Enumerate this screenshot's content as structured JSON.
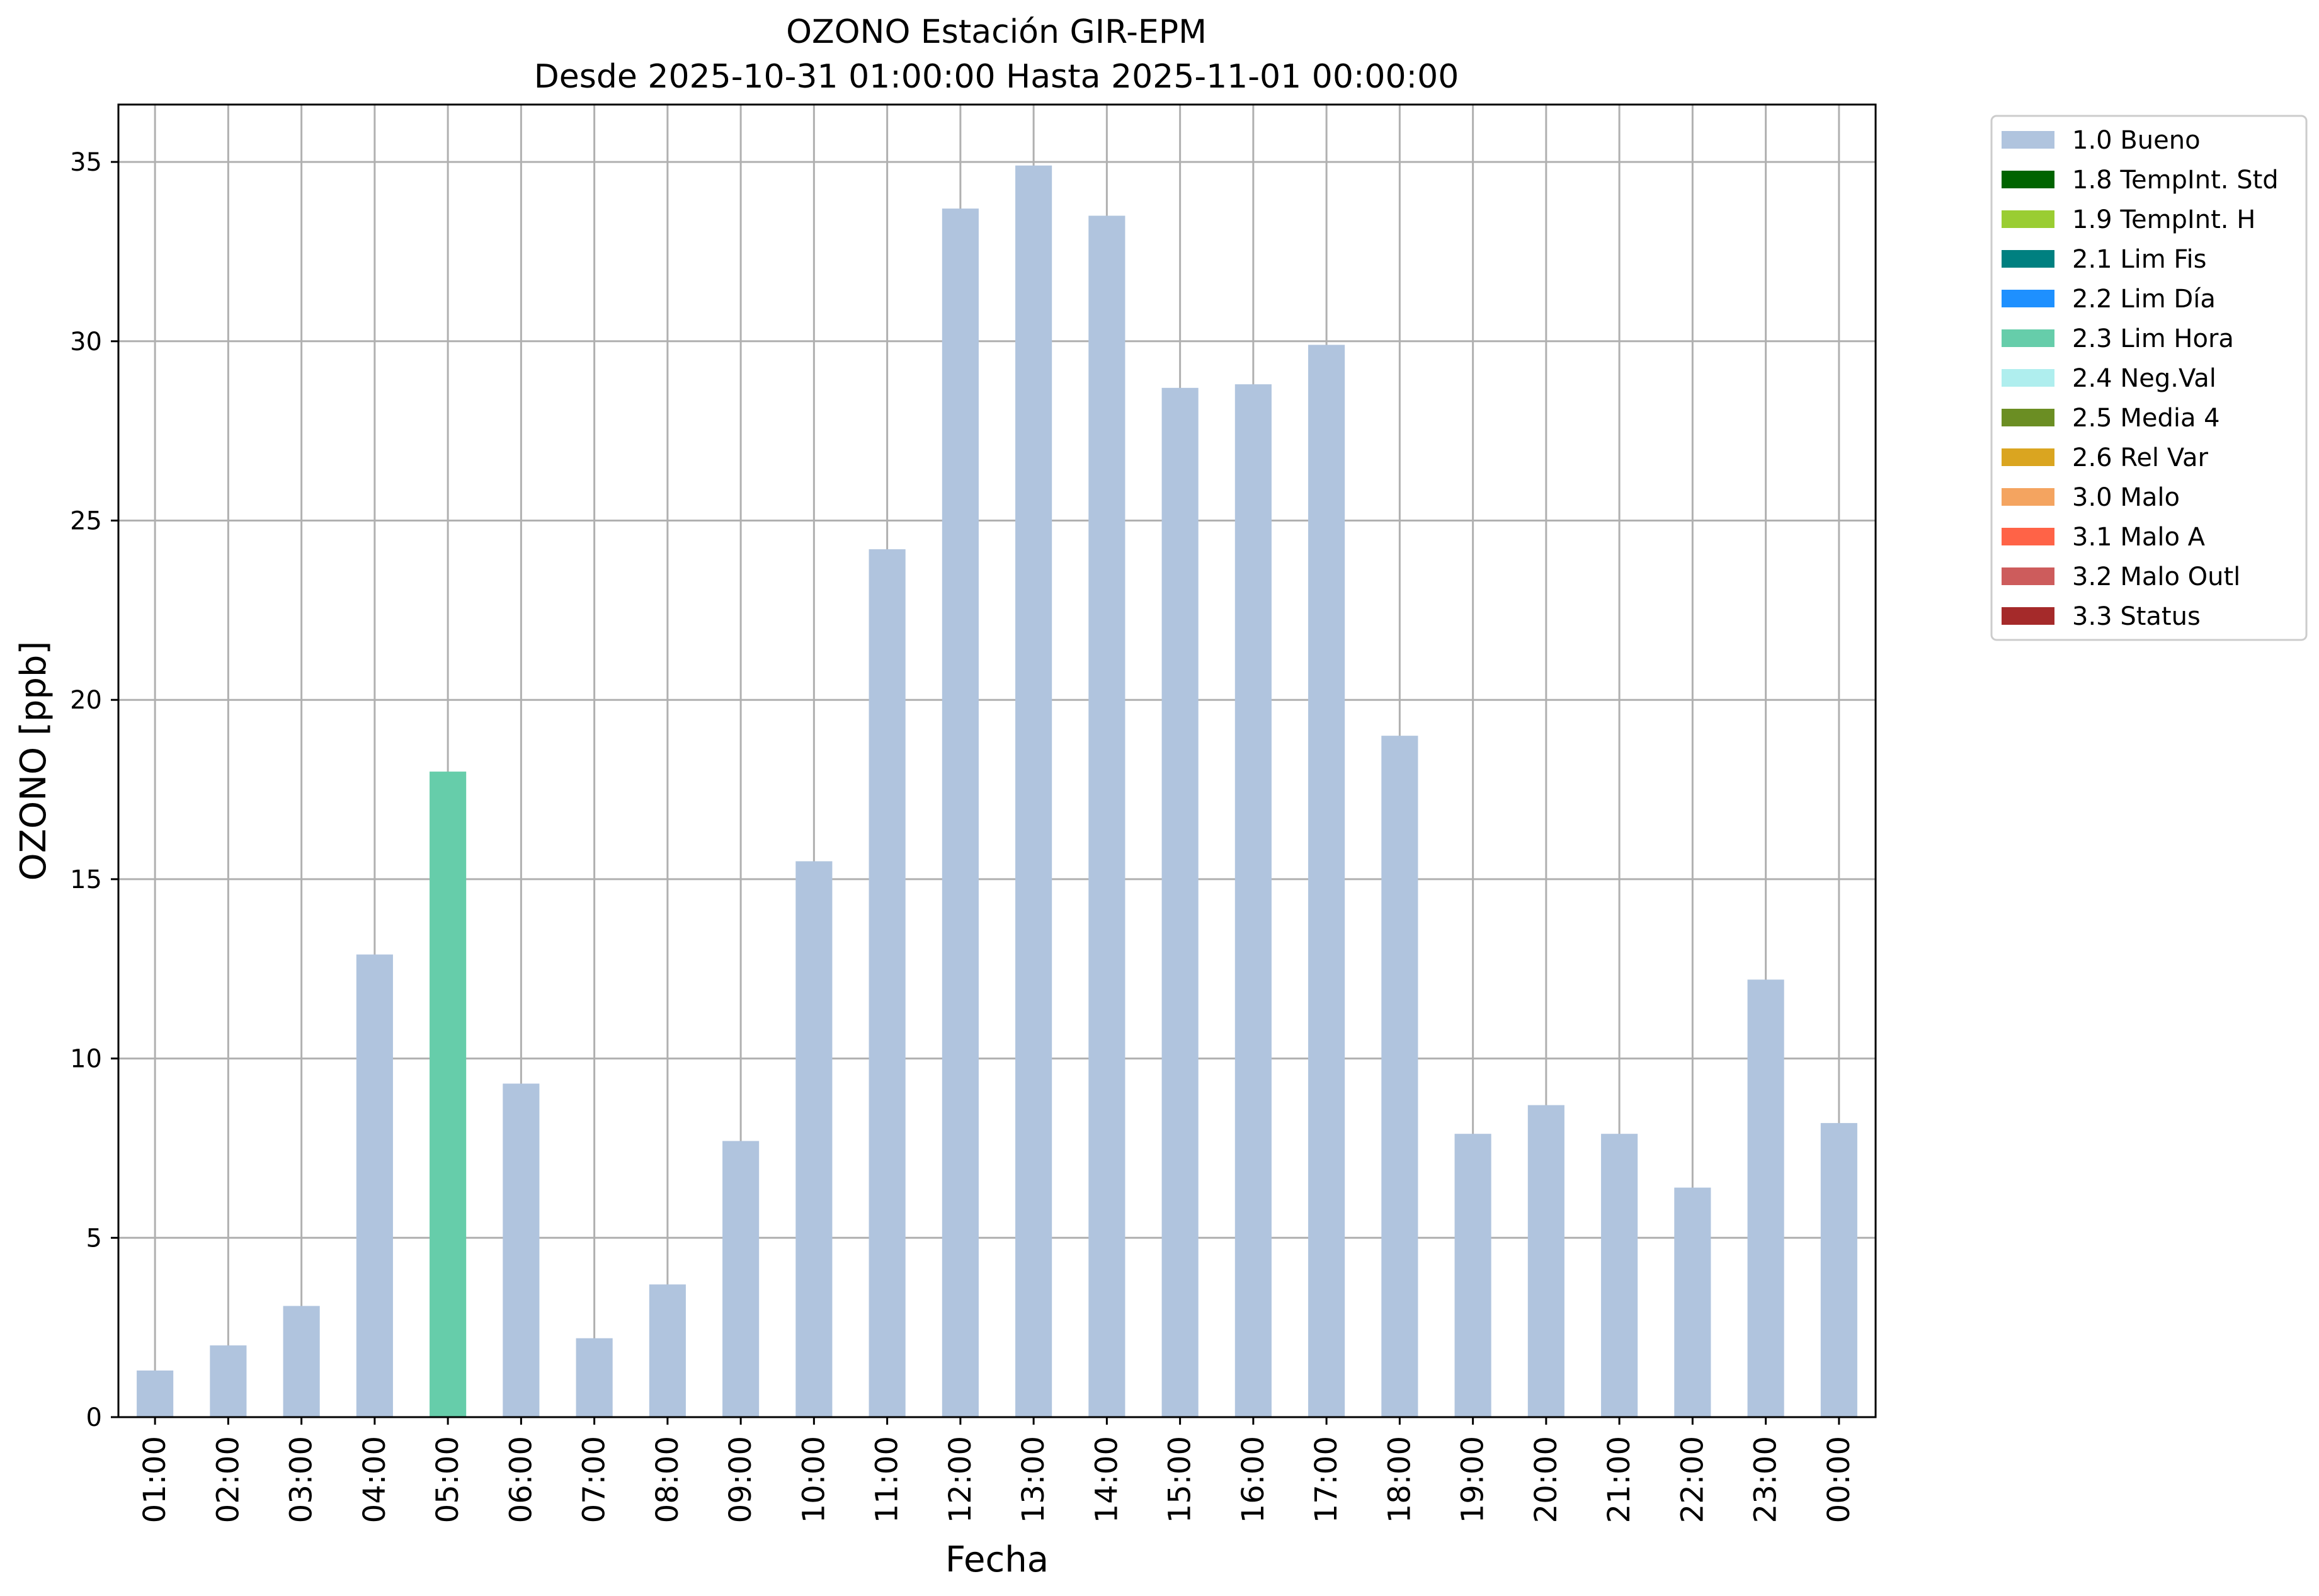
{
  "chart_data": {
    "type": "bar",
    "title": "OZONO Estación GIR-EPM",
    "subtitle": "Desde 2025-10-31 01:00:00 Hasta 2025-11-01 00:00:00",
    "xlabel": "Fecha",
    "ylabel": "OZONO [ppb]",
    "ylim": [
      0,
      36.6
    ],
    "yticks": [
      0,
      5,
      10,
      15,
      20,
      25,
      30,
      35
    ],
    "grid": true,
    "legend_position": "outside-top-right",
    "categories": [
      "01:00",
      "02:00",
      "03:00",
      "04:00",
      "05:00",
      "06:00",
      "07:00",
      "08:00",
      "09:00",
      "10:00",
      "11:00",
      "12:00",
      "13:00",
      "14:00",
      "15:00",
      "16:00",
      "17:00",
      "18:00",
      "19:00",
      "20:00",
      "21:00",
      "22:00",
      "23:00",
      "00:00"
    ],
    "values": [
      1.3,
      2.0,
      3.1,
      12.9,
      18.0,
      9.3,
      2.2,
      3.7,
      7.7,
      15.5,
      24.2,
      33.7,
      34.9,
      33.5,
      28.7,
      28.8,
      29.9,
      19.0,
      7.9,
      8.7,
      7.9,
      6.4,
      12.2,
      8.2
    ],
    "flags": [
      "1.0 Bueno",
      "1.0 Bueno",
      "1.0 Bueno",
      "1.0 Bueno",
      "2.3 Lim Hora",
      "1.0 Bueno",
      "1.0 Bueno",
      "1.0 Bueno",
      "1.0 Bueno",
      "1.0 Bueno",
      "1.0 Bueno",
      "1.0 Bueno",
      "1.0 Bueno",
      "1.0 Bueno",
      "1.0 Bueno",
      "1.0 Bueno",
      "1.0 Bueno",
      "1.0 Bueno",
      "1.0 Bueno",
      "1.0 Bueno",
      "1.0 Bueno",
      "1.0 Bueno",
      "1.0 Bueno",
      "1.0 Bueno"
    ],
    "legend": [
      {
        "label": "1.0 Bueno",
        "color": "#b0c4de"
      },
      {
        "label": "1.8 TempInt. Std",
        "color": "#006400"
      },
      {
        "label": "1.9 TempInt. H",
        "color": "#9acd32"
      },
      {
        "label": "2.1 Lim Fis",
        "color": "#008080"
      },
      {
        "label": "2.2 Lim Día",
        "color": "#1e90ff"
      },
      {
        "label": "2.3 Lim Hora",
        "color": "#66cdaa"
      },
      {
        "label": "2.4 Neg.Val",
        "color": "#afeeee"
      },
      {
        "label": "2.5 Media 4",
        "color": "#6b8e23"
      },
      {
        "label": "2.6 Rel Var",
        "color": "#daa520"
      },
      {
        "label": "3.0 Malo",
        "color": "#f4a460"
      },
      {
        "label": "3.1 Malo A",
        "color": "#ff6347"
      },
      {
        "label": "3.2 Malo Outl",
        "color": "#cd5c5c"
      },
      {
        "label": "3.3 Status",
        "color": "#a52a2a"
      }
    ]
  }
}
